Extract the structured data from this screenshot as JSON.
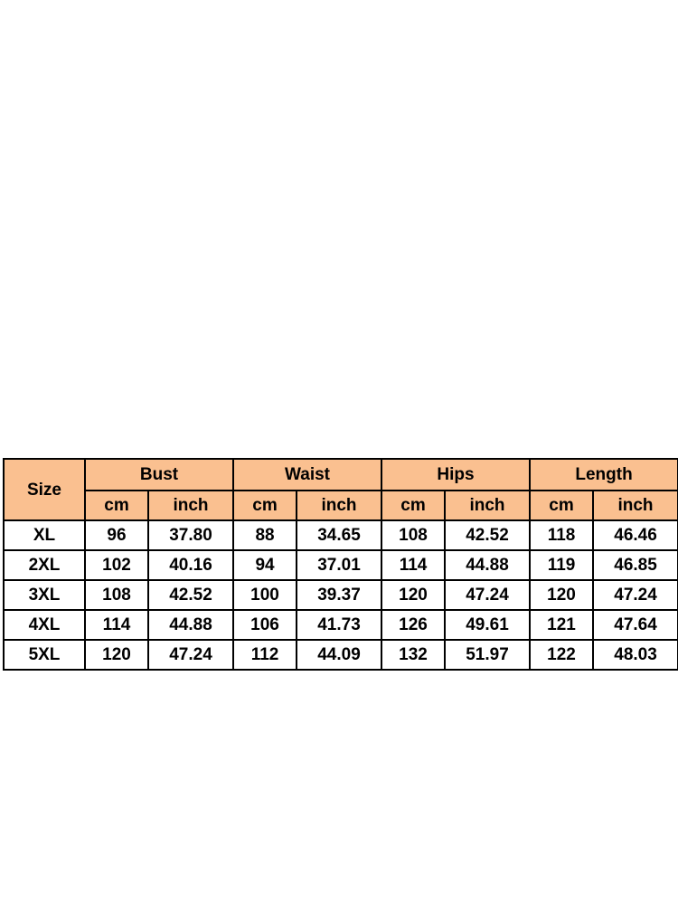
{
  "table": {
    "type": "table",
    "header_bg": "#fac090",
    "body_bg": "#ffffff",
    "border_color": "#000000",
    "text_color": "#000000",
    "font_size": 19,
    "font_weight": "bold",
    "size_label": "Size",
    "unit_cm": "cm",
    "unit_inch": "inch",
    "measurements": [
      {
        "label": "Bust"
      },
      {
        "label": "Waist"
      },
      {
        "label": "Hips"
      },
      {
        "label": "Length"
      }
    ],
    "rows": [
      {
        "size": "XL",
        "bust_cm": "96",
        "bust_in": "37.80",
        "waist_cm": "88",
        "waist_in": "34.65",
        "hips_cm": "108",
        "hips_in": "42.52",
        "length_cm": "118",
        "length_in": "46.46"
      },
      {
        "size": "2XL",
        "bust_cm": "102",
        "bust_in": "40.16",
        "waist_cm": "94",
        "waist_in": "37.01",
        "hips_cm": "114",
        "hips_in": "44.88",
        "length_cm": "119",
        "length_in": "46.85"
      },
      {
        "size": "3XL",
        "bust_cm": "108",
        "bust_in": "42.52",
        "waist_cm": "100",
        "waist_in": "39.37",
        "hips_cm": "120",
        "hips_in": "47.24",
        "length_cm": "120",
        "length_in": "47.24"
      },
      {
        "size": "4XL",
        "bust_cm": "114",
        "bust_in": "44.88",
        "waist_cm": "106",
        "waist_in": "41.73",
        "hips_cm": "126",
        "hips_in": "49.61",
        "length_cm": "121",
        "length_in": "47.64"
      },
      {
        "size": "5XL",
        "bust_cm": "120",
        "bust_in": "47.24",
        "waist_cm": "112",
        "waist_in": "44.09",
        "hips_cm": "132",
        "hips_in": "51.97",
        "length_cm": "122",
        "length_in": "48.03"
      }
    ]
  }
}
